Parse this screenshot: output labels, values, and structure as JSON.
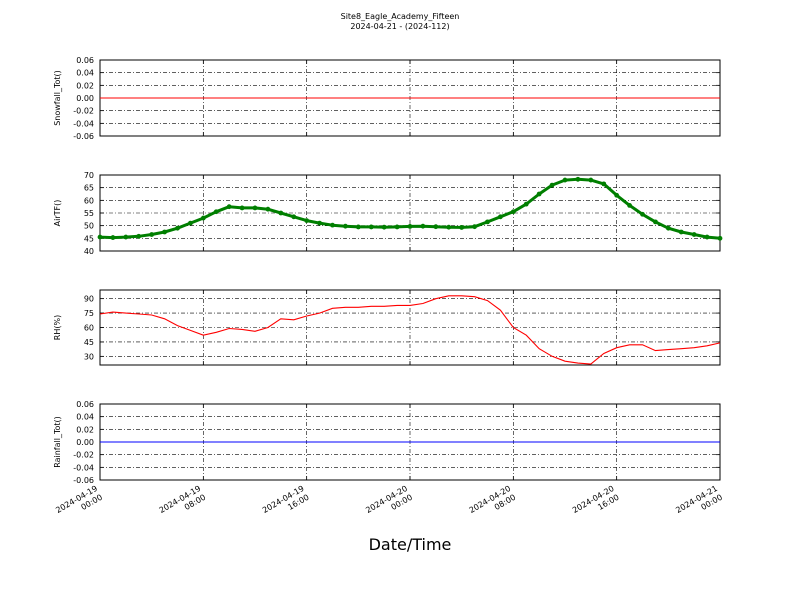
{
  "chart_data": {
    "type": "line",
    "title": "Site8_Eagle_Academy_Fifteen",
    "subtitle": "2024-04-21 - (2024-112)",
    "xlabel": "Date/Time",
    "x_ticks": [
      [
        "2024-04-19",
        "00:00"
      ],
      [
        "2024-04-19",
        "08:00"
      ],
      [
        "2024-04-19",
        "16:00"
      ],
      [
        "2024-04-20",
        "00:00"
      ],
      [
        "2024-04-20",
        "08:00"
      ],
      [
        "2024-04-20",
        "16:00"
      ],
      [
        "2024-04-21",
        "00:00"
      ]
    ],
    "xlim": [
      "2024-04-19 00:00",
      "2024-04-21 00:00"
    ],
    "grid": true,
    "panels": [
      {
        "ylabel": "Snowfall_Tot()",
        "ylim": [
          -0.06,
          0.06
        ],
        "yticks": [
          "0.06",
          "0.04",
          "0.02",
          "0.00",
          "-0.02",
          "-0.04",
          "-0.06"
        ],
        "tick_values": [
          0.06,
          0.04,
          0.02,
          0.0,
          -0.02,
          -0.04,
          -0.06
        ],
        "color": "#ff0000",
        "style": "line",
        "x_hours": [
          0,
          48
        ],
        "values": [
          0,
          0
        ]
      },
      {
        "ylabel": "AirTF()",
        "ylim": [
          40,
          70
        ],
        "yticks": [
          "70",
          "65",
          "60",
          "55",
          "50",
          "45",
          "40"
        ],
        "tick_values": [
          70,
          65,
          60,
          55,
          50,
          45,
          40
        ],
        "color": "#007f00",
        "style": "markers",
        "x_hours": [
          0,
          1,
          2,
          3,
          4,
          5,
          6,
          7,
          8,
          9,
          10,
          11,
          12,
          13,
          14,
          15,
          16,
          17,
          18,
          19,
          20,
          21,
          22,
          23,
          24,
          25,
          26,
          27,
          28,
          29,
          30,
          31,
          32,
          33,
          34,
          35,
          36,
          37,
          38,
          39,
          40,
          41,
          42,
          43,
          44,
          45,
          46,
          47,
          48
        ],
        "values": [
          45.5,
          45.3,
          45.5,
          45.8,
          46.5,
          47.5,
          49,
          51,
          53,
          55.5,
          57.5,
          57,
          57,
          56.5,
          55,
          53.5,
          52,
          51,
          50.2,
          49.8,
          49.5,
          49.5,
          49.4,
          49.5,
          49.7,
          49.8,
          49.6,
          49.4,
          49.3,
          49.6,
          51.5,
          53.5,
          55.5,
          58.5,
          62.5,
          66,
          68,
          68.3,
          68,
          66.5,
          62,
          58,
          54.5,
          51.5,
          49,
          47.5,
          46.5,
          45.5,
          45
        ]
      },
      {
        "ylabel": "RH(%)",
        "ylim": [
          21,
          99
        ],
        "yticks": [
          "90",
          "75",
          "60",
          "45",
          "30"
        ],
        "tick_values": [
          90,
          75,
          60,
          45,
          30
        ],
        "color": "#ff0000",
        "style": "line",
        "x_hours": [
          0,
          1,
          2,
          3,
          4,
          5,
          6,
          7,
          8,
          9,
          10,
          11,
          12,
          13,
          14,
          15,
          16,
          17,
          18,
          19,
          20,
          21,
          22,
          23,
          24,
          25,
          26,
          27,
          28,
          29,
          30,
          31,
          32,
          33,
          34,
          35,
          36,
          37,
          38,
          39,
          40,
          41,
          42,
          43,
          44,
          45,
          46,
          47,
          48
        ],
        "values": [
          74,
          76,
          75,
          74,
          73,
          69,
          62,
          57,
          52,
          55,
          59,
          58,
          56,
          60,
          69,
          68,
          72,
          75,
          80,
          81,
          81,
          82,
          82,
          83,
          83,
          85,
          90,
          93,
          93,
          92,
          88,
          78,
          60,
          52,
          38,
          30,
          25,
          23,
          22,
          33,
          39,
          42,
          42,
          36,
          37,
          38,
          39,
          41,
          44
        ]
      },
      {
        "ylabel": "Rainfall_Tot()",
        "ylim": [
          -0.06,
          0.06
        ],
        "yticks": [
          "0.06",
          "0.04",
          "0.02",
          "0.00",
          "-0.02",
          "-0.04",
          "-0.06"
        ],
        "tick_values": [
          0.06,
          0.04,
          0.02,
          0.0,
          -0.02,
          -0.04,
          -0.06
        ],
        "color": "#0000ff",
        "style": "line",
        "x_hours": [
          0,
          48
        ],
        "values": [
          0,
          0
        ]
      }
    ]
  }
}
